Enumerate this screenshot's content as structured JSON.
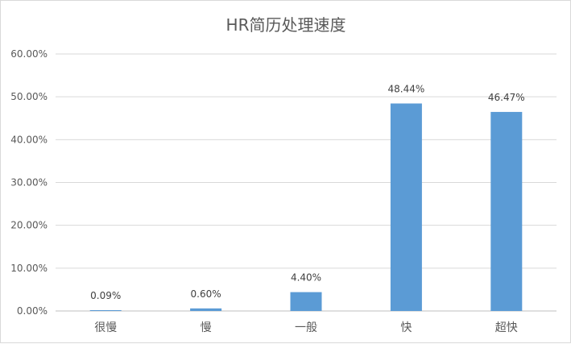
{
  "chart_data": {
    "type": "bar",
    "title": "HR简历处理速度",
    "categories": [
      "很慢",
      "慢",
      "一般",
      "快",
      "超快"
    ],
    "values": [
      0.09,
      0.6,
      4.4,
      48.44,
      46.47
    ],
    "data_labels": [
      "0.09%",
      "0.60%",
      "4.40%",
      "48.44%",
      "46.47%"
    ],
    "yticks": [
      "0.00%",
      "10.00%",
      "20.00%",
      "30.00%",
      "40.00%",
      "50.00%",
      "60.00%"
    ],
    "ylim": [
      0,
      60
    ],
    "xlabel": "",
    "ylabel": "",
    "grid": true,
    "bar_color": "#5b9bd5"
  }
}
